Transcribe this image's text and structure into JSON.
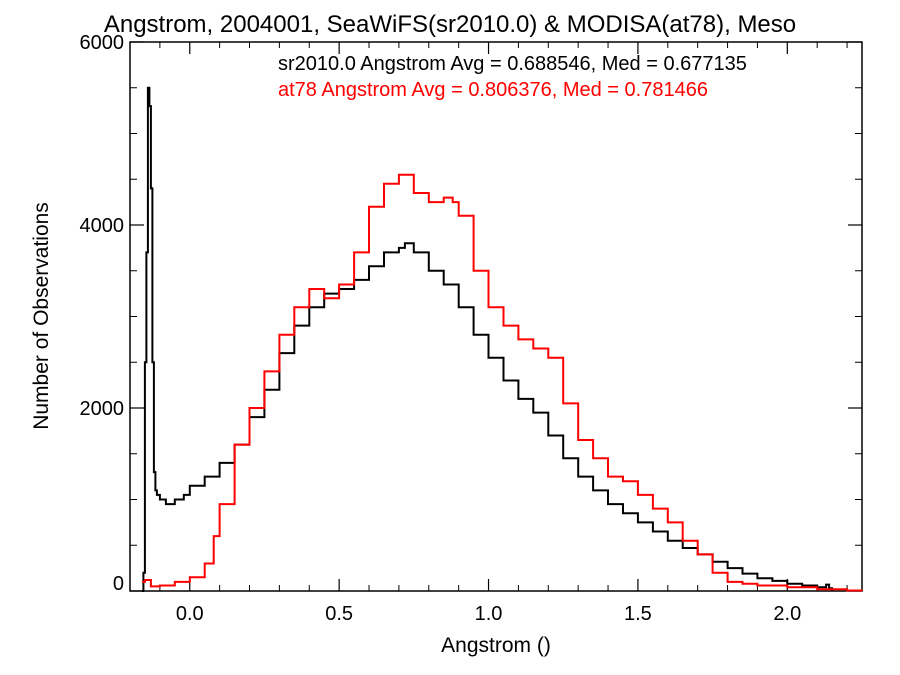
{
  "chart_data": {
    "type": "line",
    "title": "Angstrom, 2004001, SeaWiFS(sr2010.0) & MODISA(at78), Meso",
    "xlabel": "Angstrom ()",
    "ylabel": "Number of Observations",
    "xlim": [
      -0.2,
      2.25
    ],
    "ylim": [
      0,
      6000
    ],
    "xticks": [
      "0.0",
      "0.5",
      "1.0",
      "1.5",
      "2.0"
    ],
    "yticks": [
      "0",
      "2000",
      "4000",
      "6000"
    ],
    "grid": false,
    "annotations": [
      {
        "text": "sr2010.0 Angstrom Avg = 0.688546, Med = 0.677135",
        "color": "#000000"
      },
      {
        "text": "at78 Angstrom Avg = 0.806376, Med = 0.781466",
        "color": "#ff0000"
      }
    ],
    "series": [
      {
        "color": "#000000",
        "x": [
          -0.16,
          -0.155,
          -0.15,
          -0.145,
          -0.14,
          -0.135,
          -0.13,
          -0.125,
          -0.12,
          -0.115,
          -0.11,
          -0.1,
          -0.08,
          -0.05,
          -0.02,
          0.0,
          0.05,
          0.1,
          0.15,
          0.2,
          0.25,
          0.3,
          0.35,
          0.4,
          0.45,
          0.5,
          0.55,
          0.6,
          0.65,
          0.7,
          0.72,
          0.75,
          0.8,
          0.85,
          0.9,
          0.95,
          1.0,
          1.05,
          1.1,
          1.15,
          1.2,
          1.25,
          1.3,
          1.35,
          1.4,
          1.45,
          1.5,
          1.55,
          1.6,
          1.65,
          1.7,
          1.75,
          1.8,
          1.85,
          1.9,
          1.95,
          2.0,
          2.05,
          2.1,
          2.13,
          2.14,
          2.15
        ],
        "values": [
          0,
          200,
          2500,
          3700,
          5500,
          5300,
          4400,
          2500,
          1300,
          1100,
          1050,
          1000,
          950,
          1000,
          1050,
          1150,
          1250,
          1400,
          1600,
          1900,
          2200,
          2600,
          2900,
          3100,
          3250,
          3300,
          3400,
          3550,
          3700,
          3750,
          3800,
          3700,
          3500,
          3350,
          3100,
          2800,
          2550,
          2300,
          2100,
          1950,
          1700,
          1450,
          1250,
          1100,
          950,
          850,
          750,
          650,
          550,
          470,
          400,
          320,
          250,
          190,
          140,
          110,
          80,
          60,
          40,
          70,
          30,
          0
        ]
      },
      {
        "color": "#ff0000",
        "x": [
          -0.16,
          -0.15,
          -0.13,
          -0.1,
          -0.05,
          0.0,
          0.05,
          0.08,
          0.1,
          0.15,
          0.2,
          0.25,
          0.3,
          0.35,
          0.4,
          0.45,
          0.5,
          0.55,
          0.6,
          0.65,
          0.7,
          0.75,
          0.8,
          0.85,
          0.88,
          0.9,
          0.95,
          1.0,
          1.05,
          1.1,
          1.15,
          1.2,
          1.25,
          1.3,
          1.35,
          1.4,
          1.45,
          1.5,
          1.55,
          1.6,
          1.65,
          1.7,
          1.75,
          1.8,
          1.85,
          1.9,
          2.0,
          2.1,
          2.2,
          2.25
        ],
        "values": [
          100,
          120,
          50,
          60,
          100,
          150,
          300,
          600,
          950,
          1600,
          2000,
          2400,
          2800,
          3100,
          3300,
          3200,
          3350,
          3700,
          4200,
          4450,
          4550,
          4350,
          4250,
          4300,
          4250,
          4100,
          3500,
          3100,
          2900,
          2750,
          2650,
          2550,
          2050,
          1650,
          1450,
          1250,
          1200,
          1050,
          900,
          750,
          550,
          400,
          200,
          100,
          80,
          60,
          40,
          20,
          5,
          0
        ]
      }
    ]
  }
}
